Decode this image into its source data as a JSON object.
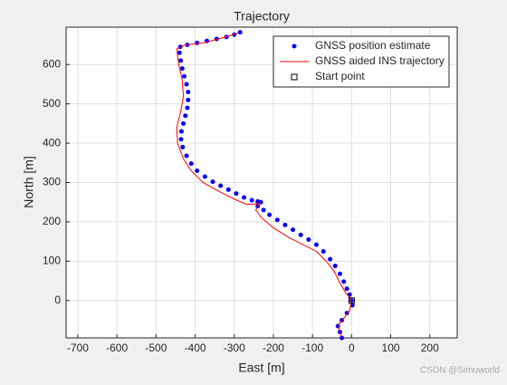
{
  "chart_data": {
    "type": "scatter",
    "title": "Trajectory",
    "xlabel": "East [m]",
    "ylabel": "North [m]",
    "xlim": [
      -730,
      270
    ],
    "ylim": [
      -95,
      695
    ],
    "xticks": [
      -700,
      -600,
      -500,
      -400,
      -300,
      -200,
      -100,
      0,
      100,
      200
    ],
    "yticks": [
      0,
      100,
      200,
      300,
      400,
      500,
      600
    ],
    "grid": true,
    "legend": "northeast",
    "watermark": "CSDN @Simuworld",
    "series": [
      {
        "name": "GNSS position estimate",
        "color": "#0000ff",
        "mode": "markers",
        "x": [
          -25,
          -30,
          -35,
          -25,
          -12,
          2,
          0,
          -5,
          -12,
          -20,
          -30,
          -42,
          -55,
          -72,
          -90,
          -110,
          -130,
          -150,
          -170,
          -190,
          -210,
          -225,
          -240,
          -232,
          -240,
          -255,
          -275,
          -295,
          -315,
          -335,
          -355,
          -375,
          -395,
          -410,
          -422,
          -432,
          -436,
          -435,
          -430,
          -425,
          -420,
          -418,
          -418,
          -422,
          -428,
          -433,
          -437,
          -440,
          -438,
          -420,
          -395,
          -370,
          -345,
          -320,
          -300,
          -285
        ],
        "values": [
          -95,
          -80,
          -65,
          -50,
          -32,
          -12,
          0,
          15,
          30,
          48,
          68,
          88,
          105,
          125,
          142,
          155,
          167,
          180,
          192,
          205,
          218,
          230,
          240,
          250,
          252,
          255,
          262,
          272,
          282,
          292,
          302,
          315,
          330,
          348,
          368,
          390,
          410,
          430,
          450,
          470,
          490,
          510,
          530,
          550,
          570,
          590,
          610,
          630,
          645,
          650,
          655,
          660,
          665,
          670,
          676,
          682
        ]
      },
      {
        "name": "GNSS aided INS trajectory",
        "color": "#ff0000",
        "mode": "line",
        "x": [
          -25,
          -32,
          -33,
          -20,
          -5,
          0,
          -15,
          -30,
          -45,
          -65,
          -90,
          -120,
          -160,
          -200,
          -230,
          -245,
          -235,
          -250,
          -270,
          -300,
          -340,
          -380,
          -410,
          -430,
          -445,
          -447,
          -437,
          -430,
          -433,
          -442,
          -447,
          -425,
          -380,
          -330,
          -290
        ],
        "values": [
          -95,
          -75,
          -60,
          -45,
          -25,
          0,
          20,
          45,
          75,
          100,
          125,
          140,
          160,
          185,
          210,
          230,
          248,
          245,
          245,
          258,
          278,
          300,
          330,
          360,
          400,
          440,
          480,
          520,
          560,
          600,
          640,
          650,
          655,
          668,
          680
        ]
      },
      {
        "name": "Start point",
        "color": "#000000",
        "mode": "square",
        "x": [
          0
        ],
        "values": [
          0
        ]
      }
    ]
  }
}
